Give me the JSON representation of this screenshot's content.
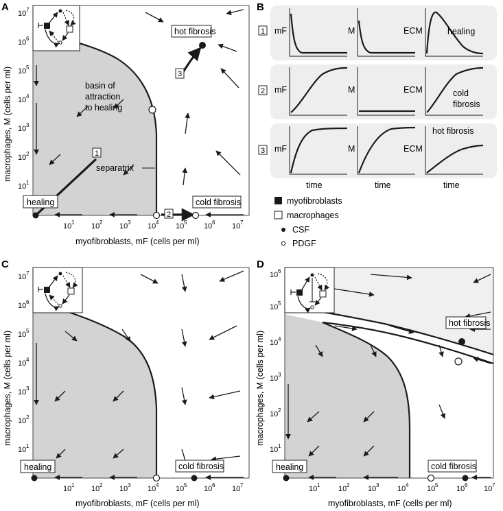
{
  "panel_labels": {
    "A": "A",
    "B": "B",
    "C": "C",
    "D": "D"
  },
  "axes": {
    "xlabel": "myofibroblasts, mF (cells per ml)",
    "ylabel": "macrophages, M (cells per ml)",
    "x_ticks": [
      "1",
      "2",
      "3",
      "4",
      "5",
      "6",
      "7"
    ],
    "y_ticks_A": [
      "1",
      "2",
      "3",
      "4",
      "5",
      "6",
      "7"
    ],
    "y_ticks_C": [
      "1",
      "2",
      "3",
      "4",
      "5",
      "6",
      "7"
    ],
    "y_ticks_D": [
      "1",
      "2",
      "3",
      "4",
      "5",
      "6"
    ],
    "tick_base": "10"
  },
  "panel_a": {
    "hot_fibrosis": "hot fibrosis",
    "cold_fibrosis": "cold fibrosis",
    "healing": "healing",
    "basin_line1": "basin of",
    "basin_line2": "attraction",
    "basin_line3": "to healing",
    "separatrix": "separatrix",
    "traj1": "1",
    "traj2": "2",
    "traj3": "3"
  },
  "panel_b": {
    "rows": [
      {
        "num": "1",
        "labels": [
          "mF",
          "M",
          "ECM"
        ],
        "note": "healing"
      },
      {
        "num": "2",
        "labels": [
          "mF",
          "M",
          "ECM"
        ],
        "note": "cold fibrosis"
      },
      {
        "num": "3",
        "labels": [
          "mF",
          "M",
          "ECM"
        ],
        "note": "hot fibrosis"
      }
    ],
    "time": "time",
    "legend": [
      "myofibroblasts",
      "macrophages",
      "CSF",
      "PDGF"
    ],
    "colors": {
      "row_bg": "#eeeeee",
      "basin": "#d3d3d3",
      "hot_region": "#f0f0f0"
    }
  },
  "panel_c": {
    "healing": "healing",
    "cold_fibrosis": "cold fibrosis"
  },
  "panel_d": {
    "hot_fibrosis": "hot fibrosis",
    "healing": "healing",
    "cold_fibrosis": "cold fibrosis"
  }
}
